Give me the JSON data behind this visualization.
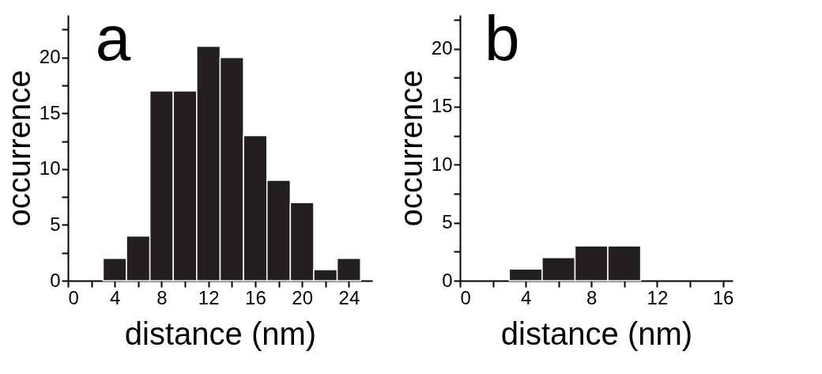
{
  "chart_data": [
    {
      "type": "histogram",
      "xlabel": "distance (nm)",
      "ylabel": "occurrence",
      "annotations": [
        "a"
      ],
      "bins": [
        3,
        5,
        7,
        9,
        11,
        13,
        15,
        17,
        19,
        21,
        23,
        25
      ],
      "values": [
        2,
        4,
        17,
        17,
        21,
        20,
        13,
        9,
        7,
        1,
        2
      ],
      "color": "#231f20",
      "xlim": [
        0,
        26
      ],
      "ylim": [
        0,
        23.8
      ],
      "xticks": [
        0,
        {
          "value": 2,
          "label": null
        },
        4,
        {
          "value": 6,
          "label": null
        },
        8,
        {
          "value": 10,
          "label": null
        },
        12,
        {
          "value": 14,
          "label": null
        },
        16,
        {
          "value": 18,
          "label": null
        },
        20,
        {
          "value": 22,
          "label": null
        },
        24
      ],
      "yticks": [
        0,
        {
          "value": 2.5,
          "label": null
        },
        5,
        {
          "value": 7.5,
          "label": null
        },
        10,
        {
          "value": 12.5,
          "label": null
        },
        15,
        {
          "value": 17.5,
          "label": null
        },
        20,
        {
          "value": 22.5,
          "label": null
        }
      ],
      "grid": false
    },
    {
      "type": "histogram",
      "xlabel": "distance (nm)",
      "ylabel": "occurrence",
      "annotations": [
        "b"
      ],
      "bins": [
        3,
        5,
        7,
        9,
        11
      ],
      "values": [
        1,
        2,
        3,
        3
      ],
      "color": "#231f20",
      "xlim": [
        0,
        16.6
      ],
      "ylim": [
        0,
        22.9
      ],
      "xticks": [
        0,
        {
          "value": 2,
          "label": null
        },
        4,
        {
          "value": 6,
          "label": null
        },
        8,
        {
          "value": 10,
          "label": null
        },
        12,
        {
          "value": 14,
          "label": null
        },
        16
      ],
      "yticks": [
        0,
        {
          "value": 2.5,
          "label": null
        },
        5,
        {
          "value": 7.5,
          "label": null
        },
        10,
        {
          "value": 12.5,
          "label": null
        },
        15,
        {
          "value": 17.5,
          "label": null
        },
        20,
        {
          "value": 22.5,
          "label": null
        }
      ],
      "grid": false
    }
  ]
}
